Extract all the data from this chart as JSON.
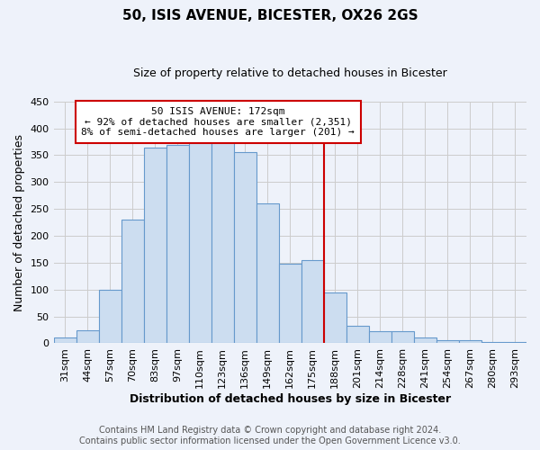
{
  "title": "50, ISIS AVENUE, BICESTER, OX26 2GS",
  "subtitle": "Size of property relative to detached houses in Bicester",
  "xlabel": "Distribution of detached houses by size in Bicester",
  "ylabel": "Number of detached properties",
  "bar_labels": [
    "31sqm",
    "44sqm",
    "57sqm",
    "70sqm",
    "83sqm",
    "97sqm",
    "110sqm",
    "123sqm",
    "136sqm",
    "149sqm",
    "162sqm",
    "175sqm",
    "188sqm",
    "201sqm",
    "214sqm",
    "228sqm",
    "241sqm",
    "254sqm",
    "267sqm",
    "280sqm",
    "293sqm"
  ],
  "bar_values": [
    10,
    25,
    100,
    230,
    365,
    370,
    375,
    375,
    355,
    260,
    148,
    155,
    95,
    33,
    22,
    22,
    10,
    5,
    5,
    3,
    3
  ],
  "bar_color": "#ccddf0",
  "bar_edge_color": "#6699cc",
  "vline_x_index": 11,
  "vline_color": "#cc0000",
  "annotation_title": "50 ISIS AVENUE: 172sqm",
  "annotation_line1": "← 92% of detached houses are smaller (2,351)",
  "annotation_line2": "8% of semi-detached houses are larger (201) →",
  "annotation_box_facecolor": "#ffffff",
  "annotation_box_edgecolor": "#cc0000",
  "ylim": [
    0,
    450
  ],
  "yticks": [
    0,
    50,
    100,
    150,
    200,
    250,
    300,
    350,
    400,
    450
  ],
  "footer_line1": "Contains HM Land Registry data © Crown copyright and database right 2024.",
  "footer_line2": "Contains public sector information licensed under the Open Government Licence v3.0.",
  "bg_color": "#eef2fa",
  "grid_color": "#cccccc",
  "title_fontsize": 11,
  "subtitle_fontsize": 9,
  "xlabel_fontsize": 9,
  "ylabel_fontsize": 9,
  "tick_fontsize": 8,
  "annotation_fontsize": 8,
  "footer_fontsize": 7
}
